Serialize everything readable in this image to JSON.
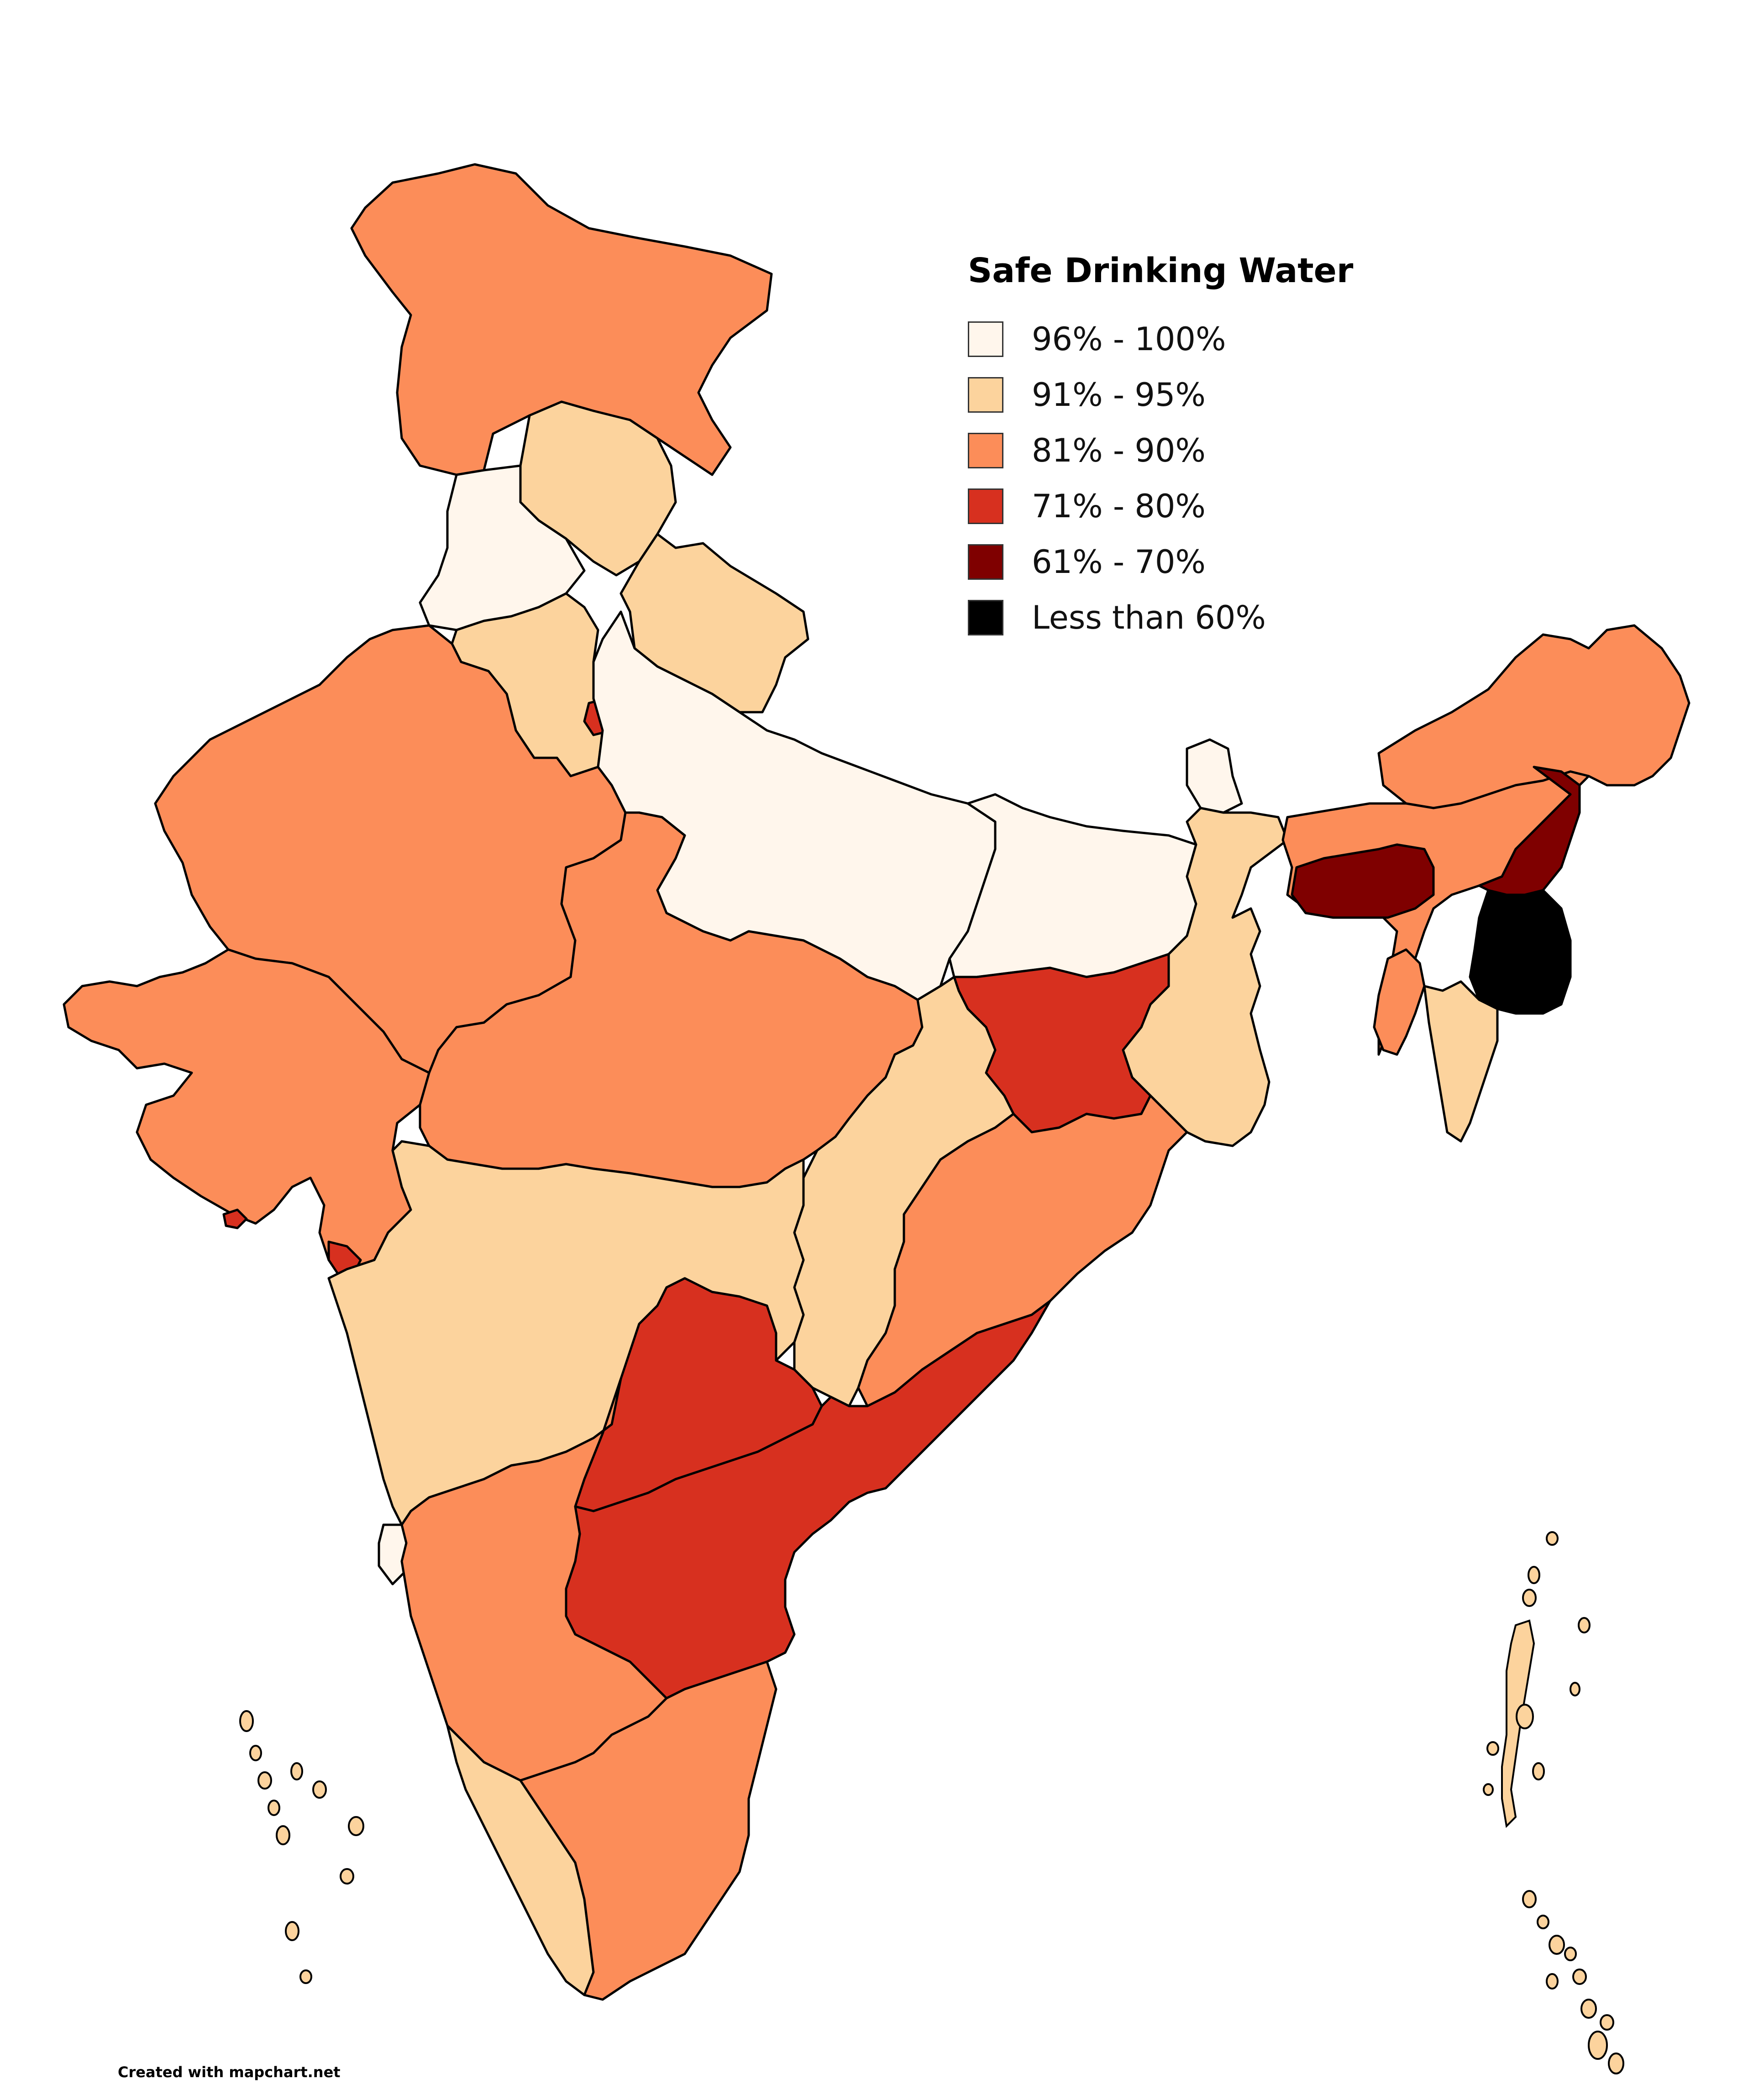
{
  "legend": {
    "title": "Safe Drinking Water",
    "items": [
      {
        "label": "96% - 100%",
        "color": "#fff6ec"
      },
      {
        "label": "91% - 95%",
        "color": "#fcd39d"
      },
      {
        "label": "81% - 90%",
        "color": "#fc8d59"
      },
      {
        "label": "71% - 80%",
        "color": "#d7301f"
      },
      {
        "label": "61% - 70%",
        "color": "#7f0000"
      },
      {
        "label": "Less than 60%",
        "color": "#000000"
      }
    ]
  },
  "credit": "Created with mapchart.net"
}
